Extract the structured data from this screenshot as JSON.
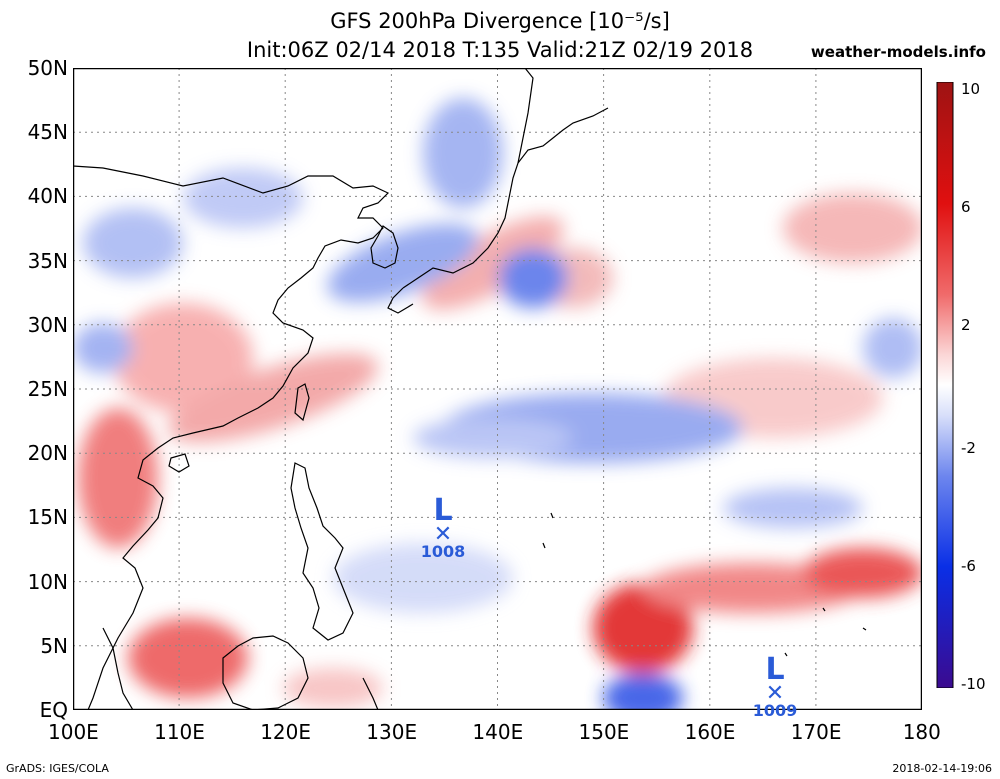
{
  "title_line1": "GFS 200hPa Divergence [10⁻⁵/s]",
  "title_line2": "Init:06Z 02/14 2018 T:135 Valid:21Z 02/19 2018",
  "site": "weather-models.info",
  "footer_left": "GrADS: IGES/COLA",
  "footer_right": "2018-02-14-19:06",
  "lat_labels": [
    "50N",
    "45N",
    "40N",
    "35N",
    "30N",
    "25N",
    "20N",
    "15N",
    "10N",
    "5N",
    "EQ"
  ],
  "lon_labels": [
    "100E",
    "110E",
    "120E",
    "130E",
    "140E",
    "150E",
    "160E",
    "170E",
    "180"
  ],
  "colorbar": {
    "labels": [
      "10",
      "6",
      "2",
      "-2",
      "-6",
      "-10"
    ],
    "colors": [
      "#3b0a8f",
      "#0a2fe6",
      "#4a6df0",
      "#9db1f5",
      "#d8dffa",
      "#ffffff",
      "#fbd6d6",
      "#f59f9f",
      "#ef5a5a",
      "#e01010",
      "#a51616"
    ]
  },
  "lows": [
    {
      "label": "L",
      "pressure": "1008"
    },
    {
      "label": "L",
      "pressure": "1009"
    }
  ]
}
